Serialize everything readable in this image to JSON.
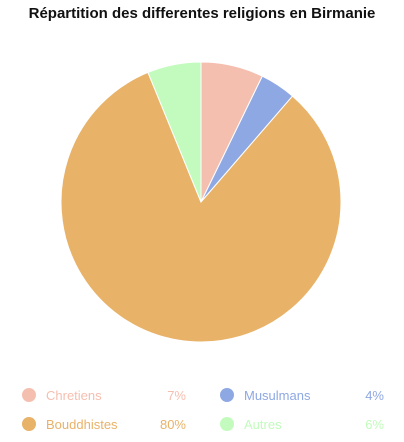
{
  "chart_data": {
    "type": "pie",
    "title": "Répartition des differentes religions en Birmanie",
    "slices": [
      {
        "label": "Chretiens",
        "value": 7,
        "value_label": "7%",
        "color": "#f5bfb0"
      },
      {
        "label": "Musulmans",
        "value": 4,
        "value_label": "4%",
        "color": "#8ea8e3"
      },
      {
        "label": "Bouddhistes",
        "value": 80,
        "value_label": "80%",
        "color": "#e8b268"
      },
      {
        "label": "Autres",
        "value": 6,
        "value_label": "6%",
        "color": "#c2fbbd"
      }
    ],
    "legend_position": "bottom"
  }
}
